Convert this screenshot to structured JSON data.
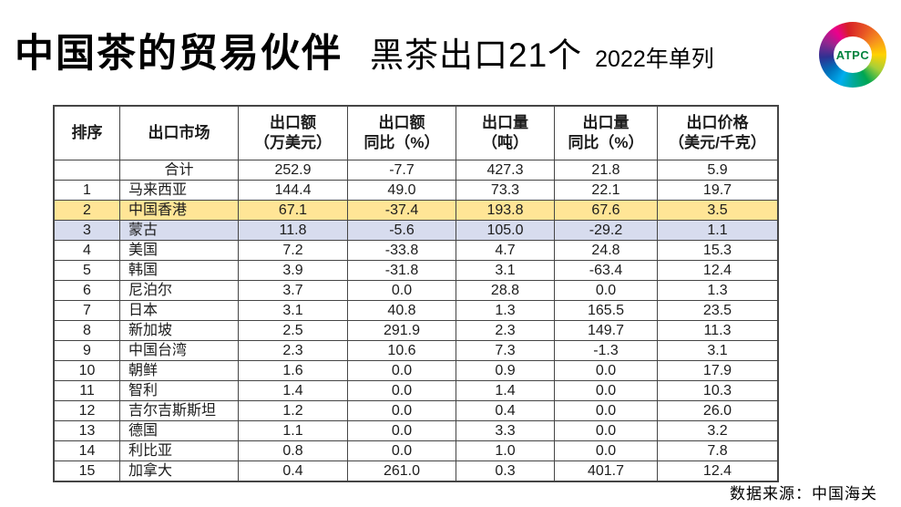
{
  "slide": {
    "title_main": "中国茶的贸易伙伴",
    "title_sub": "黑茶出口21个",
    "title_note": "2022年单列",
    "source_note": "数据来源：中国海关"
  },
  "logo": {
    "text": "ATPC"
  },
  "colors": {
    "highlight_yellow": "#ffe596",
    "highlight_blue": "#d7dcee",
    "table_border": "#454545",
    "logo_text_green": "#00833e"
  },
  "chart_data": {
    "type": "table",
    "title": "中国茶的贸易伙伴 黑茶出口21个 2022年单列",
    "source": "数据来源：中国海关",
    "columns": [
      {
        "key": "rank",
        "header": [
          "排序"
        ]
      },
      {
        "key": "market",
        "header": [
          "出口市场"
        ]
      },
      {
        "key": "value",
        "header": [
          "出口额",
          "（万美元）"
        ]
      },
      {
        "key": "value_yoy",
        "header": [
          "出口额",
          "同比（%）"
        ]
      },
      {
        "key": "volume",
        "header": [
          "出口量",
          "（吨）"
        ]
      },
      {
        "key": "volume_yoy",
        "header": [
          "出口量",
          "同比（%）"
        ]
      },
      {
        "key": "price",
        "header": [
          "出口价格",
          "（美元/千克）"
        ]
      }
    ],
    "rows": [
      {
        "rank": "",
        "market": "合计",
        "value": "252.9",
        "value_yoy": "-7.7",
        "volume": "427.3",
        "volume_yoy": "21.8",
        "price": "5.9",
        "highlight": ""
      },
      {
        "rank": "1",
        "market": "马来西亚",
        "value": "144.4",
        "value_yoy": "49.0",
        "volume": "73.3",
        "volume_yoy": "22.1",
        "price": "19.7",
        "highlight": ""
      },
      {
        "rank": "2",
        "market": "中国香港",
        "value": "67.1",
        "value_yoy": "-37.4",
        "volume": "193.8",
        "volume_yoy": "67.6",
        "price": "3.5",
        "highlight": "yellow"
      },
      {
        "rank": "3",
        "market": "蒙古",
        "value": "11.8",
        "value_yoy": "-5.6",
        "volume": "105.0",
        "volume_yoy": "-29.2",
        "price": "1.1",
        "highlight": "blue"
      },
      {
        "rank": "4",
        "market": "美国",
        "value": "7.2",
        "value_yoy": "-33.8",
        "volume": "4.7",
        "volume_yoy": "24.8",
        "price": "15.3",
        "highlight": ""
      },
      {
        "rank": "5",
        "market": "韩国",
        "value": "3.9",
        "value_yoy": "-31.8",
        "volume": "3.1",
        "volume_yoy": "-63.4",
        "price": "12.4",
        "highlight": ""
      },
      {
        "rank": "6",
        "market": "尼泊尔",
        "value": "3.7",
        "value_yoy": "0.0",
        "volume": "28.8",
        "volume_yoy": "0.0",
        "price": "1.3",
        "highlight": ""
      },
      {
        "rank": "7",
        "market": "日本",
        "value": "3.1",
        "value_yoy": "40.8",
        "volume": "1.3",
        "volume_yoy": "165.5",
        "price": "23.5",
        "highlight": ""
      },
      {
        "rank": "8",
        "market": "新加坡",
        "value": "2.5",
        "value_yoy": "291.9",
        "volume": "2.3",
        "volume_yoy": "149.7",
        "price": "11.3",
        "highlight": ""
      },
      {
        "rank": "9",
        "market": "中国台湾",
        "value": "2.3",
        "value_yoy": "10.6",
        "volume": "7.3",
        "volume_yoy": "-1.3",
        "price": "3.1",
        "highlight": ""
      },
      {
        "rank": "10",
        "market": "朝鲜",
        "value": "1.6",
        "value_yoy": "0.0",
        "volume": "0.9",
        "volume_yoy": "0.0",
        "price": "17.9",
        "highlight": ""
      },
      {
        "rank": "11",
        "market": "智利",
        "value": "1.4",
        "value_yoy": "0.0",
        "volume": "1.4",
        "volume_yoy": "0.0",
        "price": "10.3",
        "highlight": ""
      },
      {
        "rank": "12",
        "market": "吉尔吉斯斯坦",
        "value": "1.2",
        "value_yoy": "0.0",
        "volume": "0.4",
        "volume_yoy": "0.0",
        "price": "26.0",
        "highlight": ""
      },
      {
        "rank": "13",
        "market": "德国",
        "value": "1.1",
        "value_yoy": "0.0",
        "volume": "3.3",
        "volume_yoy": "0.0",
        "price": "3.2",
        "highlight": ""
      },
      {
        "rank": "14",
        "market": "利比亚",
        "value": "0.8",
        "value_yoy": "0.0",
        "volume": "1.0",
        "volume_yoy": "0.0",
        "price": "7.8",
        "highlight": ""
      },
      {
        "rank": "15",
        "market": "加拿大",
        "value": "0.4",
        "value_yoy": "261.0",
        "volume": "0.3",
        "volume_yoy": "401.7",
        "price": "12.4",
        "highlight": ""
      }
    ]
  }
}
